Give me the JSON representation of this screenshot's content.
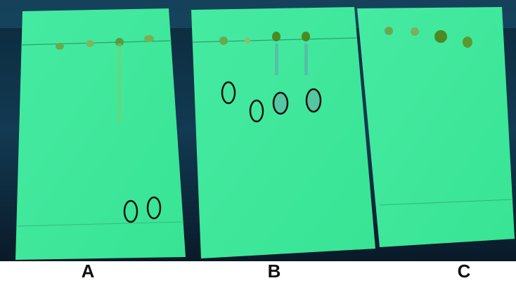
{
  "labels": [
    "A",
    "B",
    "C"
  ]
}
